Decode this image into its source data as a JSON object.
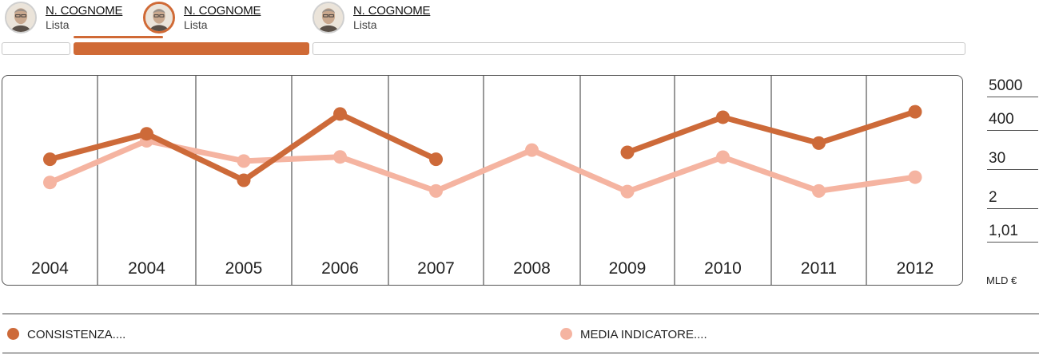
{
  "selector": {
    "people": [
      {
        "name": "N. COGNOME",
        "list": "Lista",
        "active": false
      },
      {
        "name": "N. COGNOME",
        "list": "Lista",
        "active": true
      },
      {
        "name": "N. COGNOME",
        "list": "Lista",
        "active": false
      }
    ]
  },
  "colors": {
    "accent": "#d06a36",
    "series1": "#cd6a39",
    "series2": "#f5b4a1"
  },
  "legend": {
    "series1": "CONSISTENZA....",
    "series2": "MEDIA INDICATORE...."
  },
  "chart_data": {
    "type": "line",
    "categories": [
      "2004",
      "2004",
      "2005",
      "2006",
      "2007",
      "2008",
      "2009",
      "2010",
      "2011",
      "2012"
    ],
    "y_axis": {
      "position": "right",
      "scale": "log",
      "ticks": [
        "5000",
        "400",
        "30",
        "2",
        "1,01"
      ],
      "unit": "MLD €"
    },
    "series": [
      {
        "name": "CONSISTENZA....",
        "values": [
          48,
          320,
          10,
          1400,
          48,
          null,
          80,
          1100,
          160,
          1650
        ]
      },
      {
        "name": "MEDIA INDICATORE....",
        "values": [
          8.5,
          190,
          42,
          57,
          4.5,
          95,
          4.3,
          56,
          4.5,
          12.6
        ]
      }
    ],
    "grid": "vertical column dividers",
    "legend_position": "bottom"
  }
}
